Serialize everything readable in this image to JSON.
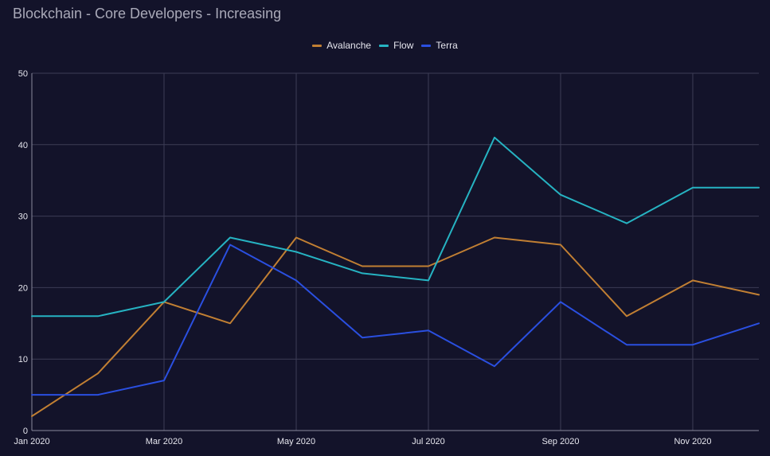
{
  "chart_data": {
    "type": "line",
    "title": "Blockchain - Core Developers - Increasing",
    "xlabel": "",
    "ylabel": "",
    "x": [
      "2020-01",
      "2020-02",
      "2020-03",
      "2020-04",
      "2020-05",
      "2020-06",
      "2020-07",
      "2020-08",
      "2020-09",
      "2020-10",
      "2020-11",
      "2020-12"
    ],
    "x_tick_labels": [
      "Jan 2020",
      "Mar 2020",
      "May 2020",
      "Jul 2020",
      "Sep 2020",
      "Nov 2020"
    ],
    "y_tick_labels": [
      "0",
      "10",
      "20",
      "30",
      "40",
      "50"
    ],
    "ylim": [
      0,
      50
    ],
    "grid": true,
    "legend_position": "top",
    "series": [
      {
        "name": "Avalanche",
        "color": "#c17f33",
        "values": [
          2,
          8,
          18,
          15,
          27,
          23,
          23,
          27,
          26,
          16,
          21,
          19
        ]
      },
      {
        "name": "Flow",
        "color": "#26b3c2",
        "values": [
          16,
          16,
          18,
          27,
          25,
          22,
          21,
          41,
          33,
          29,
          34,
          34
        ]
      },
      {
        "name": "Terra",
        "color": "#2a4fe0",
        "values": [
          5,
          5,
          7,
          26,
          21,
          13,
          14,
          9,
          18,
          12,
          12,
          15
        ]
      }
    ]
  },
  "theme": {
    "background": "#13132a",
    "grid_color": "#3c3c55",
    "axis_color": "#8a8a9c"
  }
}
